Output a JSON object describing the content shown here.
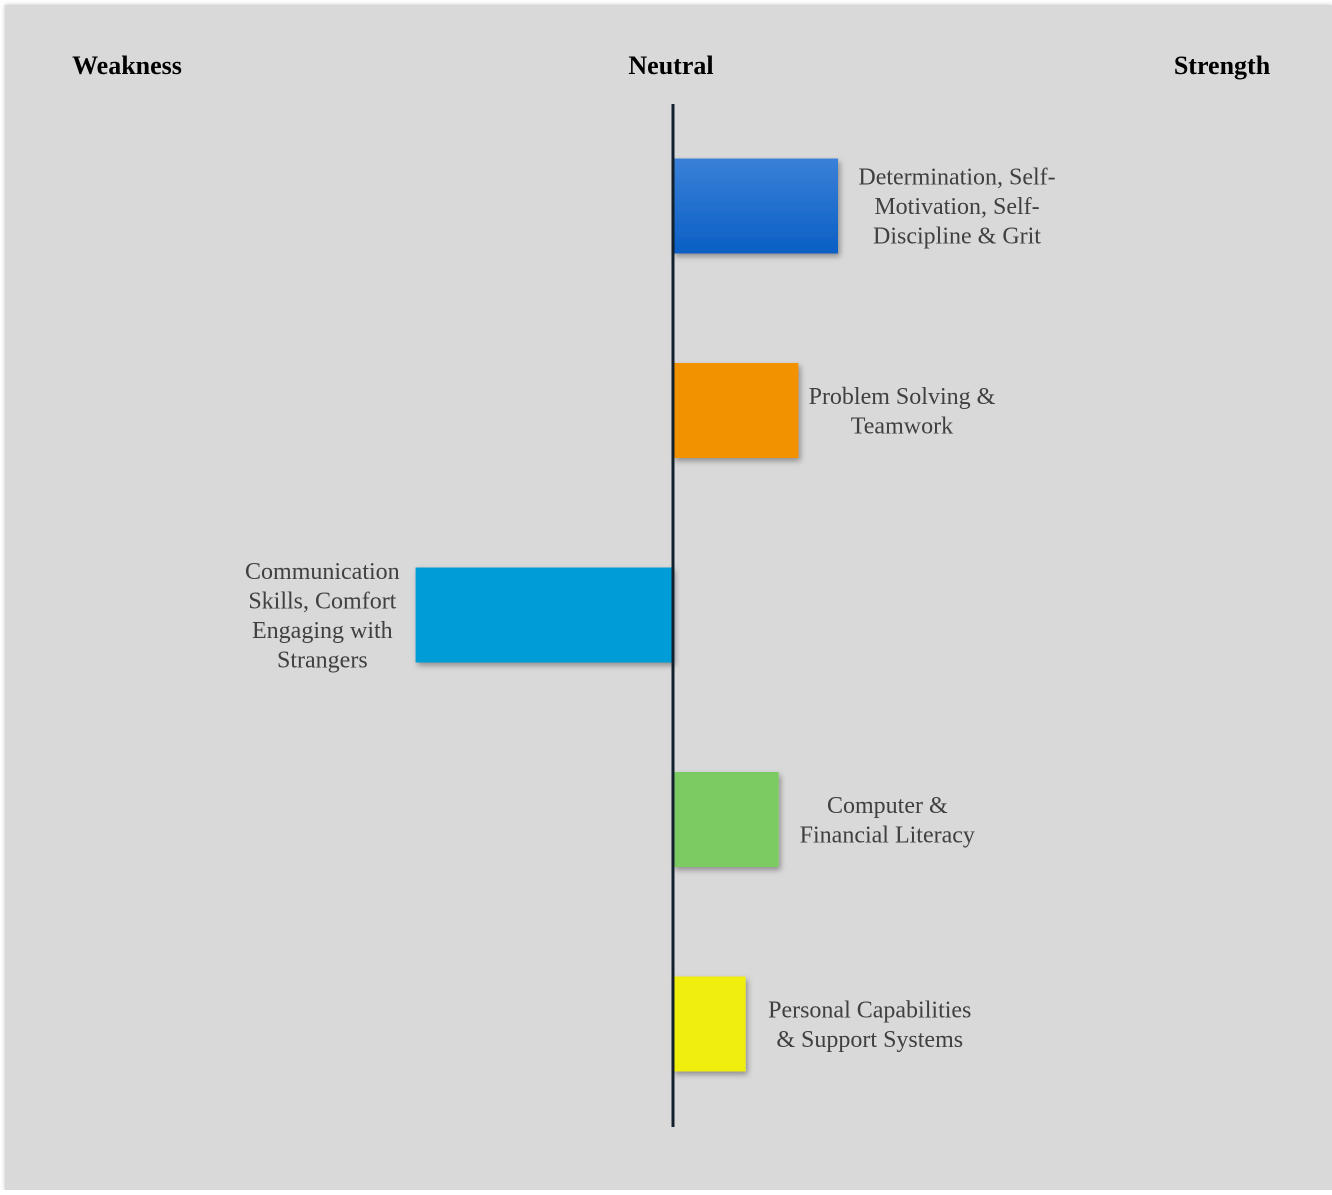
{
  "chart_data": {
    "type": "bar",
    "orientation": "horizontal",
    "headings": {
      "left": "Weakness",
      "center": "Neutral",
      "right": "Strength"
    },
    "xlim": [
      -1,
      1
    ],
    "categories": [
      [
        "Determination, Self-",
        "Motivation, Self-",
        "Discipline & Grit"
      ],
      [
        "Problem Solving &",
        "Teamwork"
      ],
      [
        "Communication",
        "Skills, Comfort",
        "Engaging with",
        "Strangers"
      ],
      [
        "Computer &",
        "Financial Literacy"
      ],
      [
        "Personal Capabilities",
        "& Support Systems"
      ]
    ],
    "values": [
      0.25,
      0.19,
      -0.39,
      0.16,
      0.11
    ],
    "colors": [
      "#0a5fc4",
      "#f39200",
      "#009cd8",
      "#7ccb62",
      "#f0ee0a"
    ],
    "gradient_top_colors": [
      "#3a80d8",
      null,
      null,
      null,
      null
    ]
  }
}
